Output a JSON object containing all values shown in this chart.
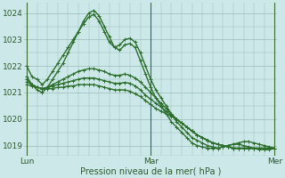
{
  "bg_color": "#cce8e8",
  "grid_color": "#99bbbb",
  "line_color": "#2d6e2d",
  "marker": "+",
  "marker_size": 3,
  "linewidth": 1.0,
  "ylabel_ticks": [
    1019,
    1020,
    1021,
    1022,
    1023,
    1024
  ],
  "ylim": [
    1018.6,
    1024.4
  ],
  "xlim": [
    -0.5,
    48.5
  ],
  "xlabel": "Pression niveau de la mer( hPa )",
  "xlabel_fontsize": 7,
  "tick_fontsize": 6.5,
  "day_labels": [
    "Lun",
    "Mar",
    "Mer"
  ],
  "day_positions": [
    0,
    24,
    48
  ],
  "vline_color": "#3a6b3a",
  "series": [
    [
      1022.0,
      1021.6,
      1021.5,
      1021.3,
      1021.5,
      1021.8,
      1022.1,
      1022.4,
      1022.7,
      1023.0,
      1023.3,
      1023.6,
      1023.85,
      1023.95,
      1023.7,
      1023.3,
      1022.9,
      1022.7,
      1022.8,
      1023.0,
      1023.05,
      1022.9,
      1022.5,
      1022.0,
      1021.5,
      1021.1,
      1020.8,
      1020.5,
      1020.2,
      1019.9,
      1019.7,
      1019.5,
      1019.3,
      1019.2,
      1019.1,
      1019.0,
      1018.95,
      1018.9,
      1018.95,
      1019.0,
      1019.05,
      1019.1,
      1019.15,
      1019.15,
      1019.1,
      1019.05,
      1019.0,
      1018.95,
      1018.9
    ],
    [
      1021.6,
      1021.3,
      1021.1,
      1021.0,
      1021.2,
      1021.5,
      1021.8,
      1022.1,
      1022.5,
      1022.9,
      1023.3,
      1023.7,
      1024.0,
      1024.1,
      1023.9,
      1023.5,
      1023.1,
      1022.7,
      1022.6,
      1022.8,
      1022.85,
      1022.7,
      1022.2,
      1021.7,
      1021.2,
      1020.8,
      1020.5,
      1020.2,
      1019.9,
      1019.7,
      1019.5,
      1019.3,
      1019.1,
      1019.0,
      1018.95,
      1018.9,
      1018.9,
      1018.9,
      1018.95,
      1019.0,
      1019.05,
      1019.05,
      1019.0,
      1018.95,
      1018.9,
      1018.85,
      1018.85,
      1018.85,
      1018.9
    ],
    [
      1021.5,
      1021.3,
      1021.2,
      1021.15,
      1021.2,
      1021.3,
      1021.4,
      1021.5,
      1021.6,
      1021.7,
      1021.8,
      1021.85,
      1021.9,
      1021.9,
      1021.85,
      1021.8,
      1021.7,
      1021.65,
      1021.65,
      1021.7,
      1021.65,
      1021.55,
      1021.4,
      1021.2,
      1021.0,
      1020.8,
      1020.6,
      1020.4,
      1020.2,
      1020.0,
      1019.85,
      1019.7,
      1019.55,
      1019.4,
      1019.3,
      1019.2,
      1019.1,
      1019.05,
      1019.0,
      1018.95,
      1018.9,
      1018.9,
      1018.9,
      1018.9,
      1018.9,
      1018.9,
      1018.9,
      1018.9,
      1018.9
    ],
    [
      1021.4,
      1021.3,
      1021.2,
      1021.15,
      1021.2,
      1021.25,
      1021.3,
      1021.35,
      1021.4,
      1021.45,
      1021.5,
      1021.55,
      1021.55,
      1021.55,
      1021.5,
      1021.45,
      1021.4,
      1021.35,
      1021.35,
      1021.38,
      1021.35,
      1021.25,
      1021.1,
      1020.9,
      1020.75,
      1020.6,
      1020.45,
      1020.3,
      1020.15,
      1020.0,
      1019.85,
      1019.7,
      1019.55,
      1019.4,
      1019.3,
      1019.2,
      1019.1,
      1019.05,
      1019.0,
      1018.95,
      1018.9,
      1018.9,
      1018.9,
      1018.9,
      1018.9,
      1018.9,
      1018.9,
      1018.9,
      1018.9
    ],
    [
      1021.3,
      1021.25,
      1021.2,
      1021.15,
      1021.15,
      1021.15,
      1021.2,
      1021.2,
      1021.25,
      1021.25,
      1021.3,
      1021.3,
      1021.3,
      1021.3,
      1021.25,
      1021.2,
      1021.15,
      1021.1,
      1021.1,
      1021.1,
      1021.05,
      1020.95,
      1020.85,
      1020.7,
      1020.55,
      1020.4,
      1020.3,
      1020.2,
      1020.1,
      1020.0,
      1019.85,
      1019.7,
      1019.55,
      1019.4,
      1019.3,
      1019.2,
      1019.1,
      1019.05,
      1019.0,
      1018.95,
      1018.9,
      1018.9,
      1018.9,
      1018.9,
      1018.9,
      1018.9,
      1018.9,
      1018.9,
      1018.9
    ]
  ]
}
